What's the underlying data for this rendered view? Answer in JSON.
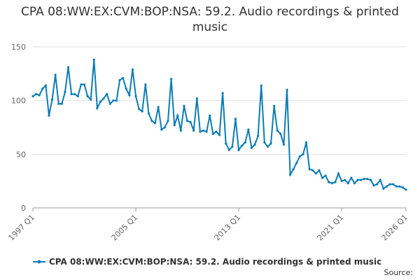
{
  "chart_data": {
    "type": "line",
    "title": "CPA 08:WW:EX:CVM:BOP:NSA: 59.2. Audio recordings & printed music",
    "source": "Source:",
    "categories": [
      "1997 Q1",
      null,
      null,
      null,
      null,
      null,
      null,
      null,
      null,
      null,
      null,
      null,
      null,
      null,
      null,
      null,
      null,
      null,
      null,
      null,
      null,
      null,
      null,
      null,
      null,
      null,
      null,
      null,
      null,
      null,
      null,
      null,
      "2005 Q1",
      null,
      null,
      null,
      null,
      null,
      null,
      null,
      null,
      null,
      null,
      null,
      null,
      null,
      null,
      null,
      null,
      null,
      null,
      null,
      null,
      null,
      null,
      null,
      null,
      null,
      null,
      null,
      null,
      null,
      null,
      null,
      "2013 Q1",
      null,
      null,
      null,
      null,
      null,
      null,
      null,
      null,
      null,
      null,
      null,
      null,
      null,
      null,
      null,
      null,
      null,
      null,
      null,
      null,
      null,
      null,
      null,
      null,
      null,
      null,
      null,
      null,
      null,
      null,
      null,
      "2021 Q1",
      null,
      null,
      null,
      null,
      null,
      null,
      null,
      null,
      null,
      null,
      null,
      null,
      null,
      null,
      null,
      null,
      null,
      null,
      null,
      "2026 Q1"
    ],
    "series": [
      {
        "name": "CPA 08:WW:EX:CVM:BOP:NSA: 59.2. Audio recordings & printed music",
        "color": "#0b7cb5",
        "values": [
          104,
          106,
          105,
          111,
          114,
          86,
          101,
          124,
          97,
          97,
          108,
          131,
          106,
          106,
          104,
          115,
          115,
          104,
          101,
          138,
          93,
          99,
          102,
          106,
          97,
          100,
          100,
          119,
          121,
          111,
          105,
          129,
          104,
          92,
          90,
          115,
          88,
          81,
          79,
          94,
          73,
          75,
          81,
          120,
          77,
          86,
          72,
          95,
          81,
          80,
          72,
          102,
          71,
          72,
          71,
          86,
          69,
          71,
          68,
          107,
          60,
          54,
          57,
          83,
          54,
          58,
          61,
          73,
          56,
          59,
          67,
          114,
          61,
          57,
          60,
          95,
          72,
          69,
          59,
          110,
          31,
          36,
          42,
          48,
          50,
          61,
          36,
          35,
          32,
          35,
          28,
          30,
          24,
          23,
          24,
          32,
          25,
          26,
          23,
          28,
          23,
          26,
          26,
          27,
          27,
          26,
          21,
          22,
          26,
          18,
          20,
          22,
          22,
          20,
          20,
          19,
          17
        ]
      }
    ],
    "ylim": [
      0,
      150
    ],
    "yticks": [
      0,
      50,
      100,
      150
    ],
    "grid": true
  }
}
